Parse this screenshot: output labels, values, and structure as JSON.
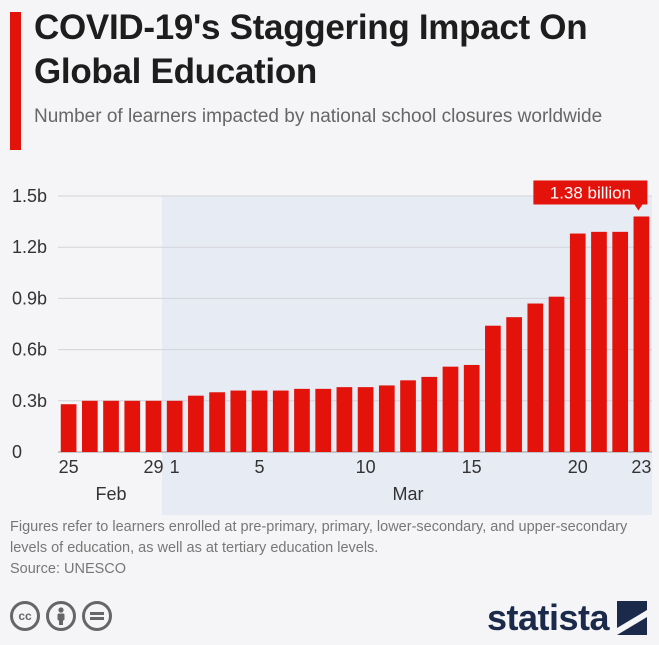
{
  "header": {
    "title": "COVID-19's Staggering Impact On Global Education",
    "subtitle": "Number of learners impacted by national school closures worldwide"
  },
  "chart_data": {
    "type": "bar",
    "yticks": [
      "0",
      "0.3b",
      "0.6b",
      "0.9b",
      "1.2b",
      "1.5b"
    ],
    "ylim": [
      0,
      1.5
    ],
    "xticks": [
      {
        "label": "25",
        "index": 0
      },
      {
        "label": "29",
        "index": 4
      },
      {
        "label": "1",
        "index": 5
      },
      {
        "label": "5",
        "index": 9
      },
      {
        "label": "10",
        "index": 14
      },
      {
        "label": "15",
        "index": 19
      },
      {
        "label": "20",
        "index": 24
      },
      {
        "label": "23",
        "index": 27
      }
    ],
    "month_labels": [
      {
        "label": "Feb",
        "center_index": 2
      },
      {
        "label": "Mar",
        "center_index": 16
      }
    ],
    "highlight_start_index": 5,
    "values": [
      0.28,
      0.3,
      0.3,
      0.3,
      0.3,
      0.3,
      0.33,
      0.35,
      0.36,
      0.36,
      0.36,
      0.37,
      0.37,
      0.38,
      0.38,
      0.39,
      0.42,
      0.44,
      0.5,
      0.51,
      0.74,
      0.79,
      0.87,
      0.91,
      1.28,
      1.29,
      1.29,
      1.38
    ],
    "callout": {
      "label": "1.38 billion",
      "index": 27
    },
    "bar_color": "#e3120b"
  },
  "footer": {
    "note": "Figures refer to learners enrolled at pre-primary, primary, lower-secondary, and upper-secondary levels of education, as well as at tertiary education levels.",
    "source": "Source: UNESCO",
    "brand": "statista"
  }
}
